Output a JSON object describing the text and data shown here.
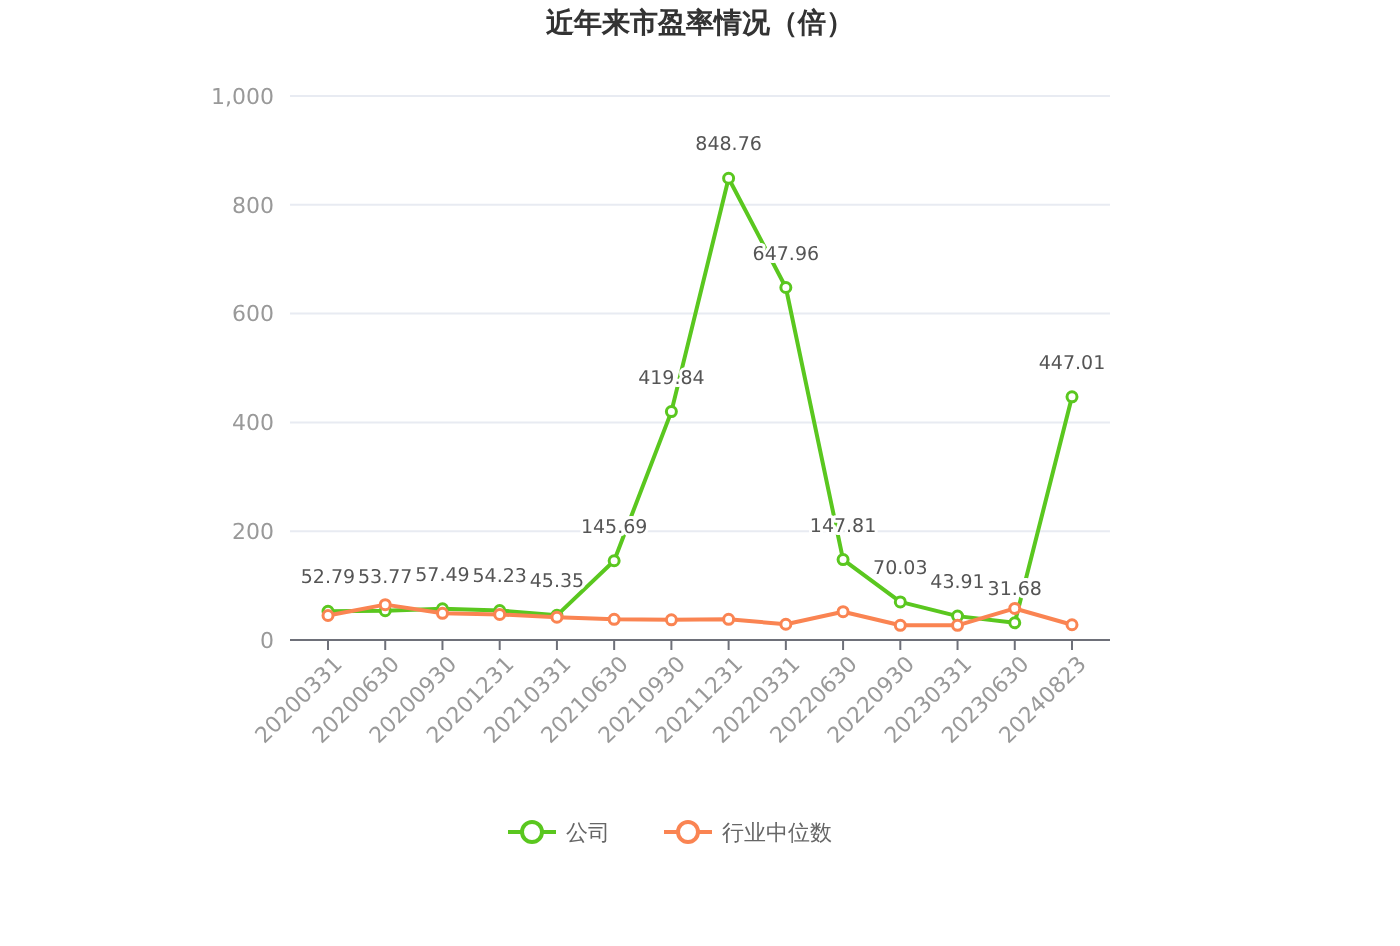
{
  "chart_data": {
    "type": "line",
    "title": "近年来市盈率情况（倍）",
    "categories": [
      "20200331",
      "20200630",
      "20200930",
      "20201231",
      "20210331",
      "20210630",
      "20210930",
      "20211231",
      "20220331",
      "20220630",
      "20220930",
      "20230331",
      "20230630",
      "20240823"
    ],
    "series": [
      {
        "name": "公司",
        "color": "#5ac71f",
        "values": [
          52.79,
          53.77,
          57.49,
          54.23,
          45.35,
          145.69,
          419.84,
          848.76,
          647.96,
          147.81,
          70.03,
          43.91,
          31.68,
          447.01
        ],
        "value_labels": [
          "52.79",
          "53.77",
          "57.49",
          "54.23",
          "45.35",
          "145.69",
          "419.84",
          "848.76",
          "647.96",
          "147.81",
          "70.03",
          "43.91",
          "31.68",
          "447.01"
        ]
      },
      {
        "name": "行业中位数",
        "color": "#fa8452",
        "values": [
          45,
          65,
          49,
          47,
          42,
          38,
          37,
          38,
          29,
          52,
          27,
          27,
          58,
          28
        ]
      }
    ],
    "ylim": [
      0,
      1000
    ],
    "yticks": [
      0,
      200,
      400,
      600,
      800,
      {
        "value": 1000,
        "label": "1,000"
      }
    ],
    "grid": "y",
    "legend": "bottom",
    "marker": "circle"
  }
}
